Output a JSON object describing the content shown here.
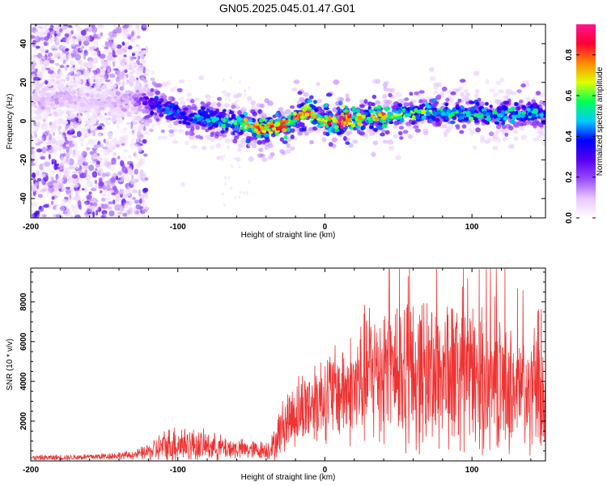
{
  "figure_title": "GN05.2025.045.01.47.G01",
  "chart_data": [
    {
      "type": "heatmap",
      "title": "GN05.2025.045.01.47.G01",
      "xlabel": "Height of straight line (km)",
      "ylabel": "Frequency (Hz)",
      "xlim": [
        -200,
        150
      ],
      "ylim": [
        -50,
        50
      ],
      "x_ticks": [
        -200,
        -100,
        0,
        100
      ],
      "x_tick_labels": [
        "-200",
        "-100",
        "0",
        "100"
      ],
      "y_ticks": [
        -40,
        -20,
        0,
        20,
        40
      ],
      "y_tick_labels": [
        "-40",
        "-20",
        "0",
        "20",
        "40"
      ],
      "colorbar": {
        "label": "Normalized spectral amplitude",
        "range": [
          0,
          0.95
        ],
        "ticks": [
          0.0,
          0.2,
          0.4,
          0.6,
          0.8
        ],
        "tick_labels": [
          "0.0",
          "0.2",
          "0.4",
          "0.6",
          "0.8"
        ],
        "colors": [
          "#ffffff",
          "#e8c8ff",
          "#9a4cff",
          "#5500ee",
          "#0000ff",
          "#00ccff",
          "#00ff55",
          "#ddff00",
          "#ff8800",
          "#ff0033",
          "#ff1493"
        ]
      },
      "ridge": {
        "x": [
          -200,
          -190,
          -180,
          -170,
          -160,
          -150,
          -140,
          -130,
          -120,
          -110,
          -100,
          -90,
          -80,
          -70,
          -60,
          -50,
          -40,
          -30,
          -20,
          -15,
          -10,
          -5,
          0,
          10,
          20,
          30,
          40,
          50,
          60,
          70,
          80,
          90,
          100,
          110,
          120,
          130,
          140,
          150
        ],
        "y": [
          10,
          11,
          12,
          12,
          10,
          9,
          10,
          11,
          10,
          7,
          4,
          2,
          1,
          0,
          -1,
          -3,
          -4,
          -2,
          1,
          3,
          4,
          2,
          0,
          0,
          1,
          3,
          2,
          3,
          4,
          5,
          4,
          4,
          3,
          4,
          3,
          3,
          4,
          4
        ],
        "peak_amplitude": [
          0.1,
          0.12,
          0.12,
          0.1,
          0.1,
          0.1,
          0.12,
          0.15,
          0.3,
          0.4,
          0.45,
          0.5,
          0.5,
          0.5,
          0.55,
          0.7,
          0.8,
          0.75,
          0.7,
          0.85,
          0.9,
          0.6,
          0.7,
          0.95,
          0.7,
          0.65,
          0.75,
          0.6,
          0.55,
          0.6,
          0.5,
          0.55,
          0.55,
          0.5,
          0.5,
          0.5,
          0.5,
          0.45
        ]
      },
      "noise_region_x": [
        -200,
        -125
      ]
    },
    {
      "type": "line",
      "xlabel": "Height of straight line (km)",
      "ylabel": "SNR (10 * v/v)",
      "xlim": [
        -200,
        150
      ],
      "ylim": [
        0,
        9700
      ],
      "x_ticks": [
        -200,
        -100,
        0,
        100
      ],
      "x_tick_labels": [
        "-200",
        "-100",
        "0",
        "100"
      ],
      "y_ticks": [
        2000,
        4000,
        6000,
        8000
      ],
      "y_tick_labels": [
        "2000",
        "4000",
        "6000",
        "8000"
      ],
      "color": "#ee3333",
      "envelope": {
        "x": [
          -200,
          -160,
          -130,
          -120,
          -110,
          -100,
          -90,
          -80,
          -70,
          -60,
          -50,
          -40,
          -35,
          -30,
          -25,
          -20,
          -10,
          0,
          10,
          20,
          30,
          40,
          50,
          60,
          70,
          80,
          90,
          100,
          110,
          120,
          130,
          140,
          150
        ],
        "mean": [
          150,
          200,
          300,
          450,
          700,
          900,
          800,
          750,
          650,
          600,
          550,
          550,
          700,
          1600,
          2100,
          2400,
          2900,
          3300,
          3500,
          3600,
          4400,
          4700,
          4600,
          4500,
          4400,
          4500,
          4300,
          4200,
          3900,
          3700,
          3600,
          3200,
          3100
        ],
        "amplitude": [
          120,
          150,
          200,
          400,
          800,
          1000,
          800,
          700,
          600,
          500,
          450,
          450,
          700,
          1200,
          1500,
          1700,
          2000,
          2200,
          2400,
          2800,
          3600,
          3900,
          3900,
          3800,
          3700,
          3900,
          3700,
          3500,
          3300,
          3000,
          3000,
          2800,
          2700
        ]
      }
    }
  ]
}
